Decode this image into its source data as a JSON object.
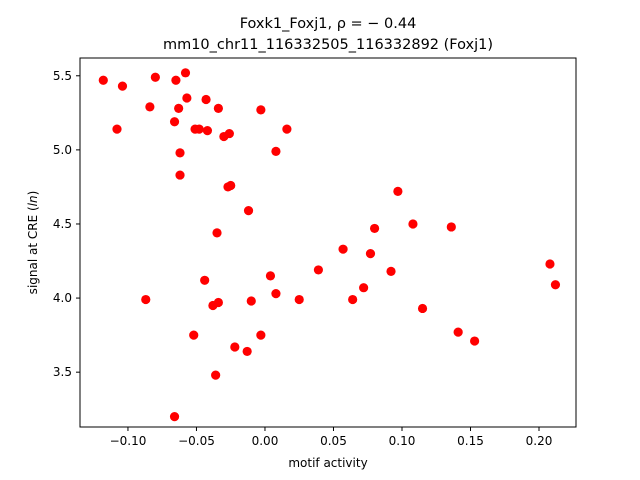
{
  "chart_data": {
    "type": "scatter",
    "title_line1": "Foxk1_Foxj1, ρ = − 0.44",
    "title_line2": "mm10_chr11_116332505_116332892 (Foxj1)",
    "xlabel": "motif activity",
    "ylabel": "signal at CRE (ln)",
    "xlim": [
      -0.135,
      0.227
    ],
    "ylim": [
      3.13,
      5.62
    ],
    "xticks": [
      -0.1,
      -0.05,
      0.0,
      0.05,
      0.1,
      0.15,
      0.2
    ],
    "xtick_labels": [
      "−0.10",
      "−0.05",
      "0.00",
      "0.05",
      "0.10",
      "0.15",
      "0.20"
    ],
    "yticks": [
      3.5,
      4.0,
      4.5,
      5.0,
      5.5
    ],
    "ytick_labels": [
      "3.5",
      "4.0",
      "4.5",
      "5.0",
      "5.5"
    ],
    "grid": false,
    "marker_color": "#ff0000",
    "points": [
      {
        "x": -0.118,
        "y": 5.47
      },
      {
        "x": -0.104,
        "y": 5.43
      },
      {
        "x": -0.08,
        "y": 5.49
      },
      {
        "x": -0.065,
        "y": 5.47
      },
      {
        "x": -0.058,
        "y": 5.52
      },
      {
        "x": -0.108,
        "y": 5.14
      },
      {
        "x": -0.084,
        "y": 5.29
      },
      {
        "x": -0.063,
        "y": 5.28
      },
      {
        "x": -0.057,
        "y": 5.35
      },
      {
        "x": -0.043,
        "y": 5.34
      },
      {
        "x": -0.034,
        "y": 5.28
      },
      {
        "x": -0.066,
        "y": 5.19
      },
      {
        "x": -0.051,
        "y": 5.14
      },
      {
        "x": -0.048,
        "y": 5.14
      },
      {
        "x": -0.042,
        "y": 5.13
      },
      {
        "x": -0.03,
        "y": 5.09
      },
      {
        "x": -0.026,
        "y": 5.11
      },
      {
        "x": -0.003,
        "y": 5.27
      },
      {
        "x": 0.016,
        "y": 5.14
      },
      {
        "x": -0.062,
        "y": 4.98
      },
      {
        "x": 0.008,
        "y": 4.99
      },
      {
        "x": -0.062,
        "y": 4.83
      },
      {
        "x": -0.027,
        "y": 4.75
      },
      {
        "x": -0.025,
        "y": 4.76
      },
      {
        "x": -0.012,
        "y": 4.59
      },
      {
        "x": -0.035,
        "y": 4.44
      },
      {
        "x": 0.097,
        "y": 4.72
      },
      {
        "x": 0.108,
        "y": 4.5
      },
      {
        "x": 0.136,
        "y": 4.48
      },
      {
        "x": 0.08,
        "y": 4.47
      },
      {
        "x": 0.057,
        "y": 4.33
      },
      {
        "x": 0.077,
        "y": 4.3
      },
      {
        "x": 0.039,
        "y": 4.19
      },
      {
        "x": 0.092,
        "y": 4.18
      },
      {
        "x": 0.208,
        "y": 4.23
      },
      {
        "x": 0.212,
        "y": 4.09
      },
      {
        "x": 0.004,
        "y": 4.15
      },
      {
        "x": -0.044,
        "y": 4.12
      },
      {
        "x": 0.072,
        "y": 4.07
      },
      {
        "x": 0.008,
        "y": 4.03
      },
      {
        "x": -0.087,
        "y": 3.99
      },
      {
        "x": 0.025,
        "y": 3.99
      },
      {
        "x": 0.064,
        "y": 3.99
      },
      {
        "x": -0.034,
        "y": 3.97
      },
      {
        "x": -0.038,
        "y": 3.95
      },
      {
        "x": -0.01,
        "y": 3.98
      },
      {
        "x": 0.115,
        "y": 3.93
      },
      {
        "x": -0.052,
        "y": 3.75
      },
      {
        "x": -0.003,
        "y": 3.75
      },
      {
        "x": 0.141,
        "y": 3.77
      },
      {
        "x": 0.153,
        "y": 3.71
      },
      {
        "x": -0.022,
        "y": 3.67
      },
      {
        "x": -0.013,
        "y": 3.64
      },
      {
        "x": -0.036,
        "y": 3.48
      },
      {
        "x": -0.066,
        "y": 3.2
      }
    ]
  }
}
